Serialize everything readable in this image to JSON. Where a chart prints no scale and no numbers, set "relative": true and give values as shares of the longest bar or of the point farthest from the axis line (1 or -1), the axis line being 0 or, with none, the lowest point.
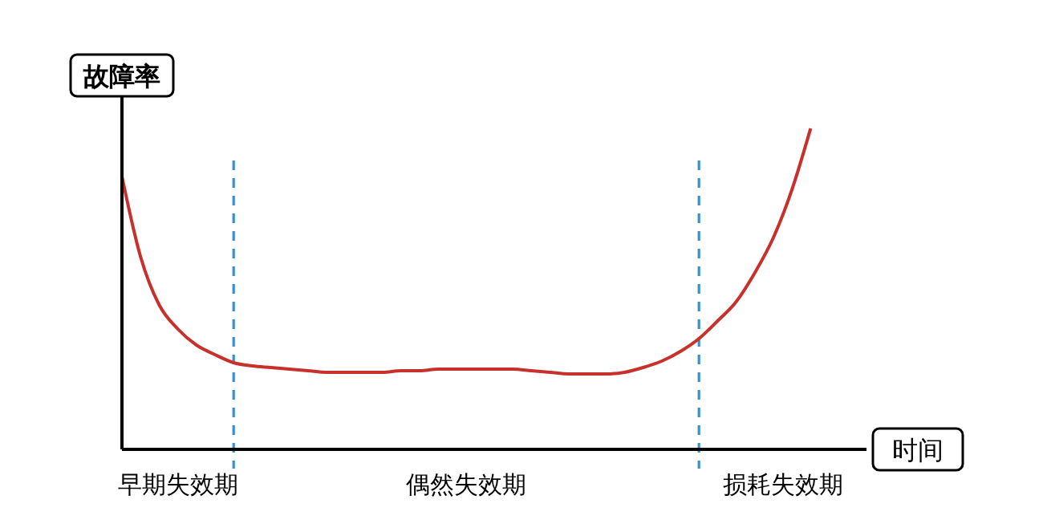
{
  "chart_data": {
    "type": "line",
    "relative": true,
    "xlabel": "时间",
    "ylabel": "故障率",
    "categories": [
      null,
      null,
      null,
      null,
      null,
      null,
      null,
      null,
      null,
      null,
      null,
      null,
      null,
      null,
      null,
      null,
      null,
      null,
      null,
      null,
      null,
      null,
      null,
      null,
      null,
      null,
      null,
      null,
      null,
      null,
      null,
      null,
      null,
      null,
      null,
      null,
      null,
      null,
      null,
      null,
      null
    ],
    "series": [
      {
        "color": "#c8302c",
        "values": [
          0.85,
          0.6,
          0.45,
          0.375,
          0.325,
          0.295,
          0.27,
          0.26,
          0.255,
          0.25,
          0.245,
          0.24,
          0.24,
          0.24,
          0.24,
          0.245,
          0.245,
          0.25,
          0.25,
          0.25,
          0.25,
          0.25,
          0.245,
          0.24,
          0.235,
          0.235,
          0.235,
          0.24,
          0.255,
          0.275,
          0.305,
          0.345,
          0.4,
          0.46,
          0.55,
          0.66,
          0.81,
          1.0,
          null,
          null,
          null
        ]
      }
    ],
    "annotations": [
      "早期失效期",
      "偶然失效期",
      "损耗失效期"
    ],
    "marker": "none",
    "line_style": "solid"
  }
}
